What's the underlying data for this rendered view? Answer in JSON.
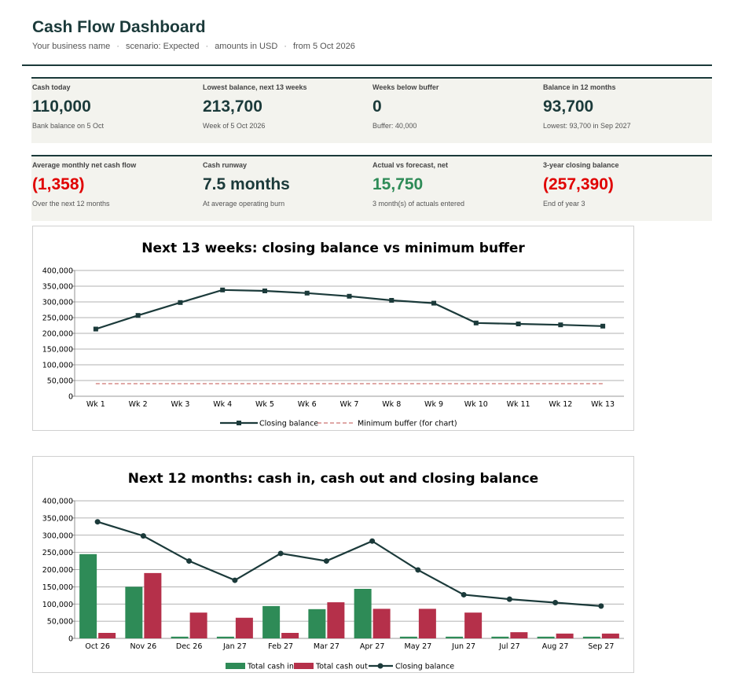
{
  "header": {
    "title": "Cash Flow Dashboard",
    "subtitle_parts": [
      "Your business name",
      "scenario: Expected",
      "amounts in USD",
      "from 5 Oct 2026"
    ]
  },
  "kpis": [
    {
      "label": "Cash today",
      "value": "110,000",
      "note": "Bank balance on 5 Oct",
      "tone": "normal"
    },
    {
      "label": "Lowest balance, next 13 weeks",
      "value": "213,700",
      "note": "Week of 5 Oct 2026",
      "tone": "normal"
    },
    {
      "label": "Weeks below buffer",
      "value": "0",
      "note": "Buffer: 40,000",
      "tone": "normal"
    },
    {
      "label": "Balance in 12 months",
      "value": "93,700",
      "note": "Lowest: 93,700 in Sep 2027",
      "tone": "normal"
    },
    {
      "label": "Average monthly net cash flow",
      "value": "(1,358)",
      "note": "Over the next 12 months",
      "tone": "negative"
    },
    {
      "label": "Cash runway",
      "value": "7.5 months",
      "note": "At average operating burn",
      "tone": "normal"
    },
    {
      "label": "Actual vs forecast, net",
      "value": "15,750",
      "note": "3 month(s) of actuals entered",
      "tone": "positive"
    },
    {
      "label": "3-year closing balance",
      "value": "(257,390)",
      "note": "End of year 3",
      "tone": "negative"
    }
  ],
  "colors": {
    "dark": "#1b3a3a",
    "cash_in": "#2e8b57",
    "cash_out": "#b5304a",
    "buffer": "#c0504d",
    "negative": "#e00000"
  },
  "chart_data": [
    {
      "type": "line",
      "title": "Next 13 weeks: closing balance vs minimum buffer",
      "categories": [
        "Wk 1",
        "Wk 2",
        "Wk 3",
        "Wk 4",
        "Wk 5",
        "Wk 6",
        "Wk 7",
        "Wk 8",
        "Wk 9",
        "Wk 10",
        "Wk 11",
        "Wk 12",
        "Wk 13"
      ],
      "series": [
        {
          "name": "Closing balance",
          "values": [
            213700,
            257000,
            298000,
            338000,
            335000,
            328000,
            318000,
            305000,
            296000,
            233000,
            230000,
            227000,
            223000
          ]
        },
        {
          "name": "Minimum buffer (for chart)",
          "values": [
            40000,
            40000,
            40000,
            40000,
            40000,
            40000,
            40000,
            40000,
            40000,
            40000,
            40000,
            40000,
            40000
          ]
        }
      ],
      "ylim": [
        0,
        400000
      ],
      "yticks": [
        "0",
        "50,000",
        "100,000",
        "150,000",
        "200,000",
        "250,000",
        "300,000",
        "350,000",
        "400,000"
      ],
      "legend": "bottom",
      "grid": true
    },
    {
      "type": "bar",
      "title": "Next 12 months: cash in, cash out and closing balance",
      "categories": [
        "Oct 26",
        "Nov 26",
        "Dec 26",
        "Jan 27",
        "Feb 27",
        "Mar 27",
        "Apr 27",
        "May 27",
        "Jun 27",
        "Jul 27",
        "Aug 27",
        "Sep 27"
      ],
      "series": [
        {
          "name": "Total cash in",
          "values": [
            245000,
            150000,
            5000,
            5000,
            94000,
            85000,
            144000,
            5000,
            5000,
            5000,
            5000,
            5000
          ]
        },
        {
          "name": "Total cash out",
          "values": [
            16000,
            190000,
            75000,
            60000,
            16000,
            105000,
            86000,
            86000,
            75000,
            18000,
            14000,
            14000
          ]
        },
        {
          "name": "Closing balance",
          "values": [
            339000,
            298000,
            225000,
            169000,
            247000,
            225000,
            283000,
            199000,
            127000,
            114000,
            104000,
            94000
          ]
        }
      ],
      "ylim": [
        0,
        400000
      ],
      "yticks": [
        "0",
        "50,000",
        "100,000",
        "150,000",
        "200,000",
        "250,000",
        "300,000",
        "350,000",
        "400,000"
      ],
      "legend": "bottom",
      "grid": true
    }
  ]
}
